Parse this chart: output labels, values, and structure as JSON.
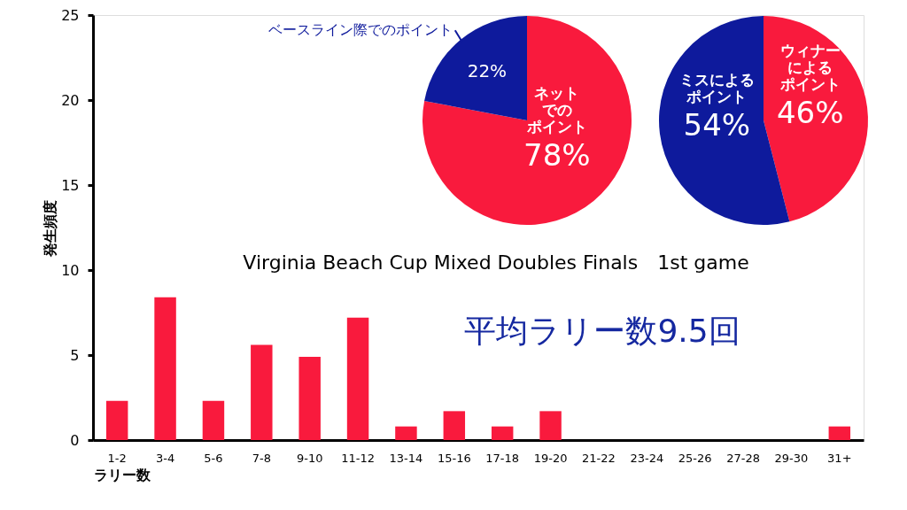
{
  "chart_data": [
    {
      "type": "bar",
      "title": "Virginia Beach Cup Mixed Doubles Finals　1st game",
      "annotations": [
        "平均ラリー数9.5回"
      ],
      "xlabel": "ラリー数",
      "ylabel": "発生頻度",
      "categories": [
        "1-2",
        "3-4",
        "5-6",
        "7-8",
        "9-10",
        "11-12",
        "13-14",
        "15-16",
        "17-18",
        "19-20",
        "21-22",
        "23-24",
        "25-26",
        "27-28",
        "29-30",
        "31+"
      ],
      "values": [
        2.3,
        8.4,
        2.3,
        5.6,
        4.9,
        7.2,
        0.8,
        1.7,
        0.8,
        1.7,
        0,
        0,
        0,
        0,
        0,
        0.8
      ],
      "color": "#f91a3d",
      "ylim": [
        0,
        25
      ],
      "yticks": [
        0,
        5,
        10,
        15,
        20,
        25
      ],
      "grid": false
    },
    {
      "type": "pie",
      "categories": [
        "ネットでのポイント",
        "ベースライン際でのポイント"
      ],
      "values": [
        78,
        22
      ],
      "colors": [
        "#f91a3d",
        "#0e1a9c"
      ],
      "value_labels": [
        "78%",
        "22%"
      ]
    },
    {
      "type": "pie",
      "categories": [
        "ウィナーによるポイント",
        "ミスによるポイント"
      ],
      "values": [
        46,
        54
      ],
      "colors": [
        "#f91a3d",
        "#0e1a9c"
      ],
      "value_labels": [
        "46%",
        "54%"
      ]
    }
  ]
}
